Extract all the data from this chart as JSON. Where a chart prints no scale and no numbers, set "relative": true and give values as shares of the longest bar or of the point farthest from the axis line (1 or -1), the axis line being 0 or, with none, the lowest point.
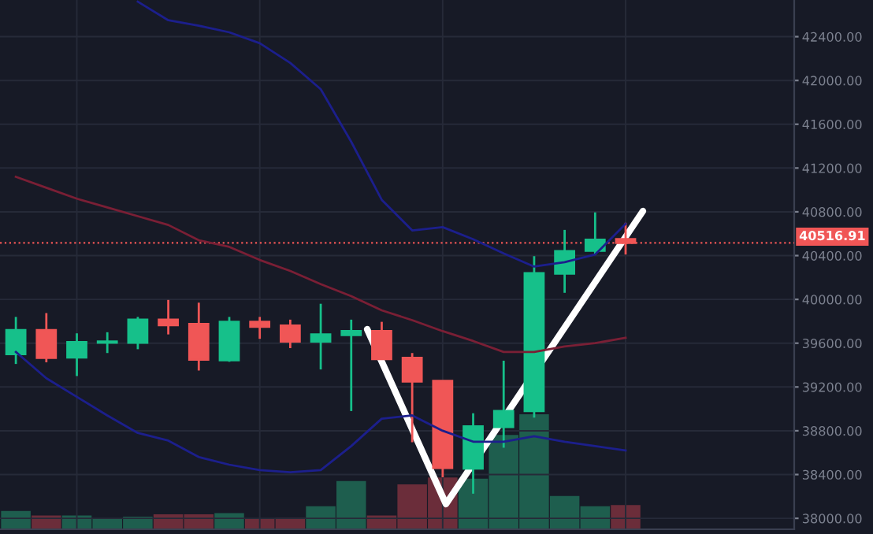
{
  "chart_data": [
    {
      "type": "candlestick",
      "categories": [
        null,
        null,
        null,
        null,
        null,
        null,
        null,
        null,
        null,
        null,
        null,
        null,
        null,
        null,
        null,
        null,
        null,
        null,
        null,
        null,
        null,
        null,
        null,
        null,
        null,
        null
      ],
      "ohlc": [
        [
          39500,
          39840,
          39410,
          39720
        ],
        [
          39720,
          39875,
          39425,
          39465
        ],
        [
          39470,
          39690,
          39300,
          39610
        ],
        [
          39605,
          39700,
          39510,
          39615
        ],
        [
          39605,
          39840,
          39545,
          39815
        ],
        [
          39815,
          39995,
          39680,
          39765
        ],
        [
          39775,
          39970,
          39350,
          39450
        ],
        [
          39445,
          39840,
          39430,
          39795
        ],
        [
          39795,
          39840,
          39640,
          39750
        ],
        [
          39760,
          39815,
          39555,
          39615
        ],
        [
          39615,
          39960,
          39360,
          39680
        ],
        [
          39675,
          39815,
          38980,
          39710
        ],
        [
          39710,
          39795,
          39450,
          39455
        ],
        [
          39465,
          39510,
          38695,
          39250
        ],
        [
          39255,
          39260,
          38375,
          38460
        ],
        [
          38455,
          38960,
          38225,
          38840
        ],
        [
          38835,
          39440,
          38645,
          38980
        ],
        [
          38980,
          40395,
          38920,
          40240
        ],
        [
          40235,
          40635,
          40060,
          40440
        ],
        [
          40445,
          40795,
          40405,
          40545
        ],
        [
          40550,
          40700,
          40410,
          40516.91
        ],
        null,
        null,
        null,
        null,
        null
      ],
      "colors": [
        "#16c08a",
        "#f05656",
        "#16c08a",
        "#16c08a",
        "#16c08a",
        "#f05656",
        "#f05656",
        "#16c08a",
        "#f05656",
        "#f05656",
        "#16c08a",
        "#16c08a",
        "#f05656",
        "#f05656",
        "#f05656",
        "#16c08a",
        "#16c08a",
        "#16c08a",
        "#16c08a",
        "#16c08a",
        "#f05656",
        null,
        null,
        null,
        null,
        null
      ],
      "series": [
        {
          "type": "line",
          "color": "#1c1f8c",
          "values": [
            null,
            null,
            null,
            null,
            42720,
            42550,
            42500,
            42440,
            42340,
            42160,
            41920,
            41440,
            40910,
            40630,
            40660,
            40550,
            40420,
            40300,
            40340,
            40410,
            40690,
            null,
            null,
            null,
            null,
            null
          ]
        },
        {
          "type": "line",
          "color": "#7a1f35",
          "values": [
            41120,
            41020,
            40920,
            40840,
            40760,
            40680,
            40540,
            40480,
            40360,
            40260,
            40140,
            40030,
            39900,
            39810,
            39710,
            39620,
            39520,
            39520,
            39570,
            39600,
            39650,
            null,
            null,
            null,
            null,
            null
          ]
        },
        {
          "type": "line",
          "color": "#1c1f8c",
          "values": [
            39520,
            39280,
            39110,
            38940,
            38780,
            38710,
            38560,
            38490,
            38440,
            38420,
            38440,
            38660,
            38910,
            38940,
            38800,
            38700,
            38700,
            38750,
            38700,
            38660,
            38620,
            null,
            null,
            null,
            null,
            null
          ]
        }
      ],
      "ylim": [
        37900,
        42735
      ],
      "yticks": [
        {
          "value": 38000,
          "label": "38000.00"
        },
        {
          "value": 38400,
          "label": "38400.00"
        },
        {
          "value": 38800,
          "label": "38800.00"
        },
        {
          "value": 39200,
          "label": "39200.00"
        },
        {
          "value": 39600,
          "label": "39600.00"
        },
        {
          "value": 40000,
          "label": "40000.00"
        },
        {
          "value": 40400,
          "label": "40400.00"
        },
        {
          "value": 40800,
          "label": "40800.00"
        },
        {
          "value": 41200,
          "label": "41200.00"
        },
        {
          "value": 41600,
          "label": "41600.00"
        },
        {
          "value": 42000,
          "label": "42000.00"
        },
        {
          "value": 42400,
          "label": "42400.00"
        }
      ],
      "ref_lines": [
        {
          "axis": "y",
          "value": 40516.91,
          "label": "40516.91",
          "color": "#f05656",
          "line_style": "dotted"
        }
      ],
      "grid": true,
      "tick_labels": "y"
    },
    {
      "type": "bar",
      "relative": true,
      "categories": [
        null,
        null,
        null,
        null,
        null,
        null,
        null,
        null,
        null,
        null,
        null,
        null,
        null,
        null,
        null,
        null,
        null,
        null,
        null,
        null,
        null,
        null,
        null,
        null,
        null,
        null
      ],
      "values": [
        0.16,
        0.12,
        0.12,
        0.09,
        0.11,
        0.13,
        0.13,
        0.14,
        0.09,
        0.1,
        0.2,
        0.42,
        0.12,
        0.39,
        0.45,
        0.44,
        0.82,
        1,
        0.29,
        0.2,
        0.21,
        null,
        null,
        null,
        null,
        null
      ],
      "colors": [
        "#1e5e4e",
        "#6b2d3a",
        "#1e5e4e",
        "#1e5e4e",
        "#1e5e4e",
        "#6b2d3a",
        "#6b2d3a",
        "#1e5e4e",
        "#6b2d3a",
        "#6b2d3a",
        "#1e5e4e",
        "#1e5e4e",
        "#6b2d3a",
        "#6b2d3a",
        "#6b2d3a",
        "#1e5e4e",
        "#1e5e4e",
        "#1e5e4e",
        "#1e5e4e",
        "#1e5e4e",
        "#6b2d3a",
        null,
        null,
        null,
        null,
        null
      ]
    }
  ]
}
